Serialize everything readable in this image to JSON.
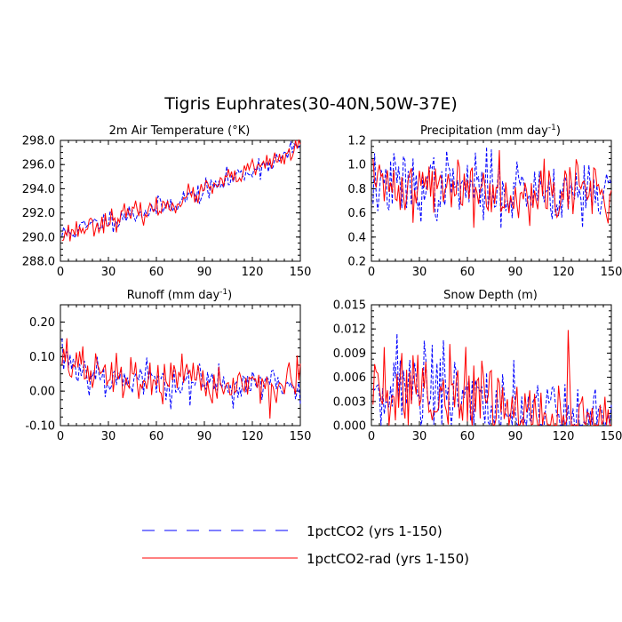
{
  "title": "Tigris Euphrates(30-40N,50W-37E)",
  "legend": [
    {
      "label": "1pctCO2 (yrs 1-150)",
      "color": "#0000ff",
      "style": "dashed"
    },
    {
      "label": "1pctCO2-rad (yrs 1-150)",
      "color": "#ff0000",
      "style": "solid"
    }
  ],
  "chart_data": [
    {
      "type": "line",
      "title": "2m Air Temperature (°K)",
      "xlim": [
        0,
        150
      ],
      "ylim": [
        288.0,
        298.0
      ],
      "xticks": [
        0,
        30,
        60,
        90,
        120,
        150
      ],
      "yticks": [
        288.0,
        290.0,
        292.0,
        294.0,
        296.0,
        298.0
      ],
      "ytick_labels": [
        "288.0",
        "290.0",
        "292.0",
        "294.0",
        "296.0",
        "298.0"
      ],
      "trend": [
        [
          1,
          290.2
        ],
        [
          20,
          291.0
        ],
        [
          40,
          291.8
        ],
        [
          60,
          292.3
        ],
        [
          90,
          293.8
        ],
        [
          120,
          295.6
        ],
        [
          140,
          296.6
        ],
        [
          150,
          297.8
        ]
      ],
      "noise": [
        0.45,
        0.45
      ],
      "series": [
        {
          "name": "1pctCO2 (yrs 1-150)",
          "seed": 11
        },
        {
          "name": "1pctCO2-rad (yrs 1-150)",
          "seed": 23
        }
      ]
    },
    {
      "type": "line",
      "title": "Precipitation (mm day",
      "title_sup": "-1",
      "title_end": ")",
      "xlim": [
        0,
        150
      ],
      "ylim": [
        0.2,
        1.2
      ],
      "xticks": [
        0,
        30,
        60,
        90,
        120,
        150
      ],
      "yticks": [
        0.2,
        0.4,
        0.6,
        0.8,
        1.0,
        1.2
      ],
      "ytick_labels": [
        "0.2",
        "0.4",
        "0.6",
        "0.8",
        "1.0",
        "1.2"
      ],
      "trend": [
        [
          1,
          0.83
        ],
        [
          150,
          0.78
        ]
      ],
      "noise": [
        0.14,
        0.13
      ],
      "series": [
        {
          "name": "1pctCO2 (yrs 1-150)",
          "seed": 37
        },
        {
          "name": "1pctCO2-rad (yrs 1-150)",
          "seed": 41
        }
      ]
    },
    {
      "type": "line",
      "title": "Runoff (mm day",
      "title_sup": "-1",
      "title_end": ")",
      "xlim": [
        0,
        150
      ],
      "ylim": [
        -0.1,
        0.25
      ],
      "xticks": [
        0,
        30,
        60,
        90,
        120,
        150
      ],
      "yticks": [
        -0.1,
        0.0,
        0.1,
        0.2
      ],
      "ytick_labels": [
        "-0.10",
        "0.00",
        "0.10",
        "0.20"
      ],
      "trend": [
        [
          1,
          0.11
        ],
        [
          10,
          0.07
        ],
        [
          30,
          0.04
        ],
        [
          90,
          0.02
        ],
        [
          150,
          0.015
        ]
      ],
      "noise": [
        0.03,
        0.033
      ],
      "series": [
        {
          "name": "1pctCO2 (yrs 1-150)",
          "seed": 53
        },
        {
          "name": "1pctCO2-rad (yrs 1-150)",
          "seed": 67
        }
      ]
    },
    {
      "type": "line",
      "title": "Snow Depth (m)",
      "xlim": [
        0,
        150
      ],
      "ylim": [
        0.0,
        0.015
      ],
      "xticks": [
        0,
        30,
        60,
        90,
        120,
        150
      ],
      "yticks": [
        0.0,
        0.003,
        0.006,
        0.009,
        0.012,
        0.015
      ],
      "ytick_labels": [
        "0.000",
        "0.003",
        "0.006",
        "0.009",
        "0.012",
        "0.015"
      ],
      "trend": [
        [
          1,
          0.0055
        ],
        [
          30,
          0.0045
        ],
        [
          60,
          0.0035
        ],
        [
          90,
          0.0018
        ],
        [
          120,
          0.0008
        ],
        [
          150,
          0.0002
        ]
      ],
      "noise": [
        0.0028,
        0.003
      ],
      "series": [
        {
          "name": "1pctCO2 (yrs 1-150)",
          "seed": 71
        },
        {
          "name": "1pctCO2-rad (yrs 1-150)",
          "seed": 89
        }
      ]
    }
  ]
}
